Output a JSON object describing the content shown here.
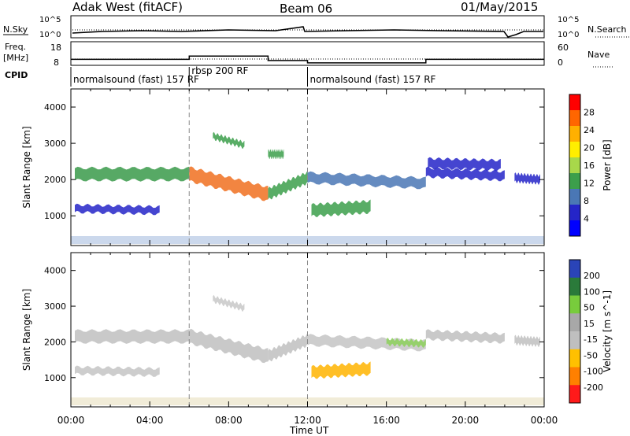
{
  "header": {
    "station": "Adak West (fitACF)",
    "beam": "Beam 06",
    "date": "01/May/2015"
  },
  "params": {
    "nsky_label": "N.Sky",
    "nsearch_label": "N.Search",
    "freq_label_1": "Freq.",
    "freq_label_2": "[MHz]",
    "nave_label": "Nave",
    "cpid_label": "CPID",
    "noise_ticks_left": [
      "10^5",
      "10^0"
    ],
    "noise_ticks_right": [
      "10^5",
      "10^0"
    ],
    "freq_ticks": [
      "18",
      "8"
    ],
    "nave_ticks": [
      "60",
      "0"
    ],
    "cpid_segments": [
      {
        "label": "normalsound (fast) 157 RF",
        "start": 0,
        "end": 6
      },
      {
        "label": "rbsp 200 RF",
        "start": 6,
        "end": 12
      },
      {
        "label": "normalsound (fast) 157 RF",
        "start": 12,
        "end": 24
      }
    ],
    "freq_steps": [
      {
        "start": 0,
        "end": 6,
        "mhz": 11.2
      },
      {
        "start": 6,
        "end": 10,
        "mhz": 12.6
      },
      {
        "start": 10,
        "end": 12,
        "mhz": 10.7
      },
      {
        "start": 12,
        "end": 18,
        "mhz": 9.7
      },
      {
        "start": 18,
        "end": 24,
        "mhz": 11.2
      }
    ]
  },
  "chart_data": [
    {
      "type": "heatmap",
      "name": "power",
      "ylabel": "Slant Range [km]",
      "yticks": [
        1000,
        2000,
        3000,
        4000
      ],
      "ylim": [
        180,
        4500
      ],
      "xlim": [
        0,
        24
      ],
      "colorbar_label": "Power [dB]",
      "colorbar_ticks": [
        "28",
        "24",
        "20",
        "16",
        "12",
        "8",
        "4"
      ],
      "colorbar_colors": [
        "#ff0000",
        "#ff6600",
        "#ffb000",
        "#ffee00",
        "#a8d84a",
        "#3c9f4b",
        "#4a77b5",
        "#2525c8",
        "#0000ff"
      ],
      "bands": [
        {
          "t0": 0.2,
          "t1": 6.0,
          "r0": 2150,
          "r1": 2150,
          "dr": 330,
          "color": "#3a9a4a"
        },
        {
          "t0": 6.0,
          "t1": 10.0,
          "r0": 2150,
          "r1": 1600,
          "dr": 380,
          "color": "#f07020"
        },
        {
          "t0": 10.0,
          "t1": 12.0,
          "r0": 1600,
          "r1": 2050,
          "dr": 300,
          "color": "#3c9f4b"
        },
        {
          "t0": 12.0,
          "t1": 18.0,
          "r0": 2050,
          "r1": 1900,
          "dr": 280,
          "color": "#4a77b5"
        },
        {
          "t0": 18.0,
          "t1": 22.0,
          "r0": 2200,
          "r1": 2100,
          "dr": 240,
          "color": "#2525c8"
        },
        {
          "t0": 22.5,
          "t1": 23.8,
          "r0": 2050,
          "r1": 2000,
          "dr": 220,
          "color": "#2525c8"
        },
        {
          "t0": 0.2,
          "t1": 4.5,
          "r0": 1200,
          "r1": 1150,
          "dr": 200,
          "color": "#2525c8"
        },
        {
          "t0": 12.2,
          "t1": 15.2,
          "r0": 1150,
          "r1": 1250,
          "dr": 320,
          "color": "#3c9f4b"
        },
        {
          "t0": 7.2,
          "t1": 8.8,
          "r0": 3200,
          "r1": 2950,
          "dr": 160,
          "color": "#3c9f4b"
        },
        {
          "t0": 10.0,
          "t1": 10.8,
          "r0": 2700,
          "r1": 2700,
          "dr": 200,
          "color": "#3c9f4b"
        },
        {
          "t0": 18.1,
          "t1": 21.8,
          "r0": 2450,
          "r1": 2400,
          "dr": 260,
          "color": "#2525c8"
        }
      ]
    },
    {
      "type": "heatmap",
      "name": "velocity",
      "ylabel": "Slant Range [km]",
      "yticks": [
        1000,
        2000,
        3000,
        4000
      ],
      "ylim": [
        180,
        4500
      ],
      "xlim": [
        0,
        24
      ],
      "xlabel": "Time UT",
      "xticks": [
        "00:00",
        "04:00",
        "08:00",
        "12:00",
        "16:00",
        "20:00",
        "00:00"
      ],
      "colorbar_label": "Velocity [m s^-1]",
      "colorbar_ticks": [
        "200",
        "100",
        "50",
        "15",
        "-15",
        "-50",
        "-100",
        "-200"
      ],
      "colorbar_colors": [
        "#2a44b8",
        "#2a7a3a",
        "#78cc3c",
        "#a8a8a8",
        "#bfbfbf",
        "#ffc000",
        "#ff8000",
        "#ff1a1a"
      ],
      "bands": [
        {
          "t0": 0.2,
          "t1": 6.0,
          "r0": 2150,
          "r1": 2150,
          "dr": 330,
          "color": "#c0c0c0"
        },
        {
          "t0": 6.0,
          "t1": 10.0,
          "r0": 2150,
          "r1": 1600,
          "dr": 380,
          "color": "#c0c0c0"
        },
        {
          "t0": 10.0,
          "t1": 12.0,
          "r0": 1600,
          "r1": 2050,
          "dr": 300,
          "color": "#c0c0c0"
        },
        {
          "t0": 12.0,
          "t1": 18.0,
          "r0": 2050,
          "r1": 1900,
          "dr": 280,
          "color": "#c4c4c4"
        },
        {
          "t0": 18.0,
          "t1": 22.0,
          "r0": 2200,
          "r1": 2100,
          "dr": 240,
          "color": "#c0c0c0"
        },
        {
          "t0": 22.5,
          "t1": 23.8,
          "r0": 2050,
          "r1": 2000,
          "dr": 220,
          "color": "#c0c0c0"
        },
        {
          "t0": 0.2,
          "t1": 4.5,
          "r0": 1200,
          "r1": 1150,
          "dr": 200,
          "color": "#c4c4c4"
        },
        {
          "t0": 12.2,
          "t1": 15.2,
          "r0": 1150,
          "r1": 1250,
          "dr": 320,
          "color": "#ffb400"
        },
        {
          "t0": 7.2,
          "t1": 8.8,
          "r0": 3200,
          "r1": 2950,
          "dr": 160,
          "color": "#c8c8c8"
        },
        {
          "t0": 16.0,
          "t1": 18.0,
          "r0": 2000,
          "r1": 1950,
          "dr": 160,
          "color": "#8cd05a"
        }
      ]
    }
  ]
}
